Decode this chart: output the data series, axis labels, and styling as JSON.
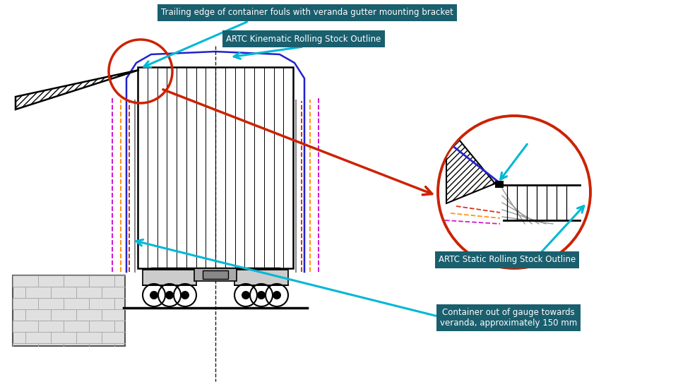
{
  "bg_color": "#ffffff",
  "label_bg_color": "#1a5f6e",
  "label_text_color": "#ffffff",
  "label1": "Trailing edge of container fouls with veranda gutter mounting bracket",
  "label2": "ARTC Kinematic Rolling Stock Outline",
  "label3": "ARTC Static Rolling Stock Outline",
  "label4": "Container out of gauge towards\nveranda, approximately 150 mm",
  "outline_kinematic_color": "#2222cc",
  "outline_static_color": "#888888",
  "dashed_colors": [
    "#cc00cc",
    "#ff8800",
    "#cc2200"
  ],
  "circle_color": "#cc2200",
  "cyan_color": "#00b8d4",
  "container_line_color": "#000000",
  "label_bg_dark": "#1a5276"
}
